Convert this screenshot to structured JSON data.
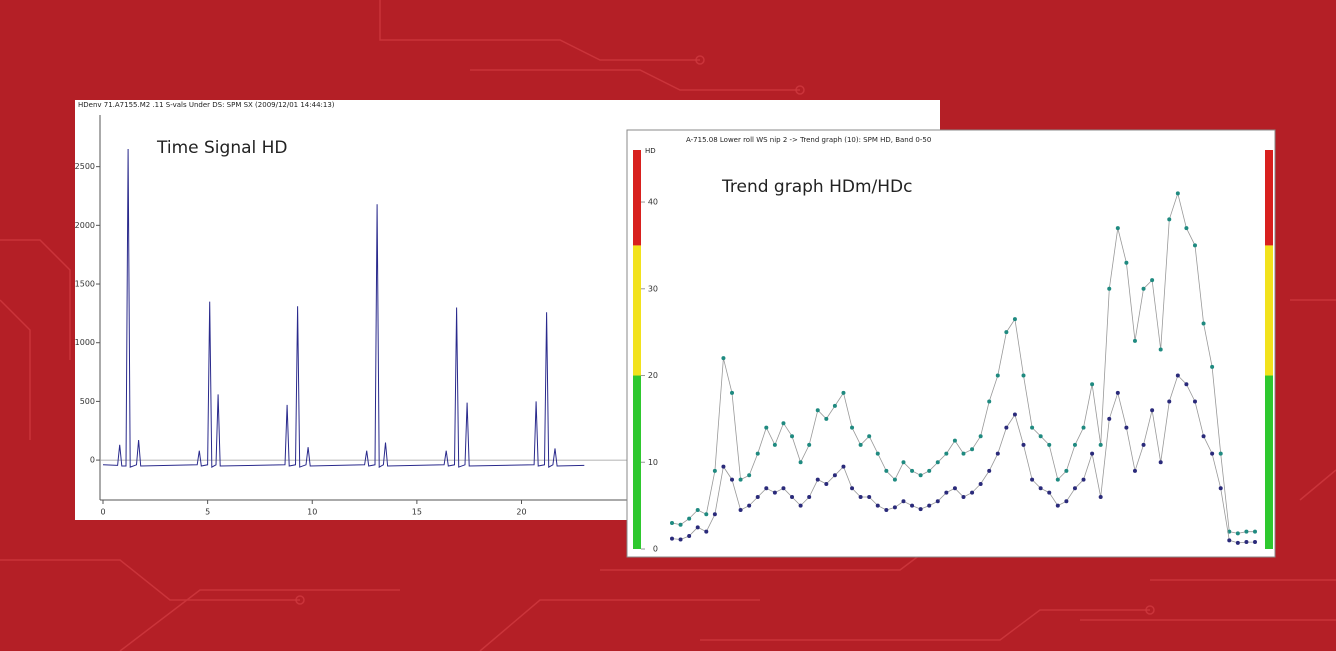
{
  "chart_data": [
    {
      "type": "line",
      "title": "HDenv  71.A7155.M2 .11  S-vals Under DS: SPM SX (2009/12/01 14:44:13)",
      "annotation": "Time Signal HD",
      "color": "#2a2a8c",
      "x": [
        0,
        0.7,
        0.8,
        0.9,
        1.1,
        1.2,
        1.3,
        1.6,
        1.7,
        1.8,
        4.5,
        4.6,
        4.7,
        5.0,
        5.1,
        5.2,
        5.4,
        5.5,
        5.6,
        8.7,
        8.8,
        8.9,
        9.2,
        9.3,
        9.4,
        9.7,
        9.8,
        9.9,
        12.5,
        12.6,
        12.7,
        13.0,
        13.1,
        13.2,
        13.4,
        13.5,
        13.6,
        16.3,
        16.4,
        16.5,
        16.8,
        16.9,
        17.0,
        17.3,
        17.4,
        17.5,
        20.6,
        20.7,
        20.8,
        21.1,
        21.2,
        21.3,
        21.5,
        21.6,
        21.7,
        23
      ],
      "values": [
        -40,
        -45,
        130,
        -50,
        -50,
        2650,
        -60,
        -40,
        170,
        -50,
        -40,
        80,
        -50,
        -40,
        1350,
        -60,
        -40,
        560,
        -50,
        -40,
        470,
        -50,
        -40,
        1310,
        -60,
        -40,
        110,
        -50,
        -40,
        80,
        -50,
        -40,
        2180,
        -60,
        -40,
        150,
        -50,
        -40,
        80,
        -50,
        -40,
        1300,
        -60,
        -40,
        490,
        -50,
        -40,
        500,
        -50,
        -40,
        1260,
        -60,
        -40,
        100,
        -50,
        -45
      ],
      "xlim": [
        0,
        40
      ],
      "ylim": [
        -340,
        2940
      ],
      "xticks": [
        0,
        5,
        10,
        15,
        20
      ],
      "yticks": [
        0,
        500,
        1000,
        1500,
        2000,
        2500
      ]
    },
    {
      "type": "scatter-line",
      "title": "A-715.08 Lower roll WS nip 2 -> Trend graph (10): SPM HD, Band 0-50",
      "annotation": "Trend graph HDm/HDc",
      "y_label": "HD",
      "series": [
        {
          "color": "#1f8a80",
          "values": [
            3,
            2.8,
            3.5,
            4.5,
            4,
            9,
            22,
            18,
            8,
            8.5,
            11,
            14,
            12,
            14.5,
            13,
            10,
            12,
            16,
            15,
            16.5,
            18,
            14,
            12,
            13,
            11,
            9,
            8,
            10,
            9,
            8.5,
            9,
            10,
            11,
            12.5,
            11,
            11.5,
            13,
            17,
            20,
            25,
            26.5,
            20,
            14,
            13,
            12,
            8,
            9,
            12,
            14,
            19,
            12,
            30,
            37,
            33,
            24,
            30,
            31,
            23,
            38,
            41,
            37,
            35,
            26,
            21,
            11,
            2,
            1.8,
            2,
            2
          ]
        },
        {
          "color": "#2a2a7a",
          "values": [
            1.2,
            1.1,
            1.5,
            2.5,
            2,
            4,
            9.5,
            8,
            4.5,
            5,
            6,
            7,
            6.5,
            7,
            6,
            5,
            6,
            8,
            7.5,
            8.5,
            9.5,
            7,
            6,
            6,
            5,
            4.5,
            4.8,
            5.5,
            5,
            4.6,
            5,
            5.5,
            6.5,
            7,
            6,
            6.5,
            7.5,
            9,
            11,
            14,
            15.5,
            12,
            8,
            7,
            6.5,
            5,
            5.5,
            7,
            8,
            11,
            6,
            15,
            18,
            14,
            9,
            12,
            16,
            10,
            17,
            20,
            19,
            17,
            13,
            11,
            7,
            1,
            0.7,
            0.8,
            0.8
          ]
        }
      ],
      "line_color": "#999999",
      "bands": [
        {
          "from": 0,
          "to": 20,
          "color": "#2ec82e"
        },
        {
          "from": 20,
          "to": 35,
          "color": "#f2e21c"
        },
        {
          "from": 35,
          "to": 46,
          "color": "#d8201e"
        }
      ],
      "ylim": [
        0,
        46
      ],
      "yticks": [
        0,
        10,
        20,
        30,
        40
      ]
    }
  ]
}
